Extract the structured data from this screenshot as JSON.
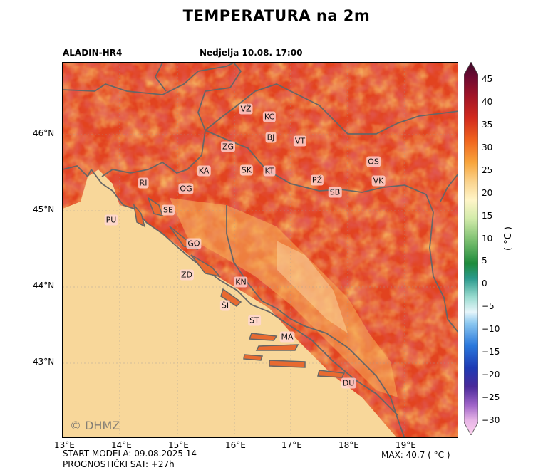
{
  "title": "TEMPERATURA na 2m",
  "model": "ALADIN-HR4",
  "valid_time": "Nedjelja 10.08. 17:00",
  "x_ticks": [
    "13°E",
    "14°E",
    "15°E",
    "16°E",
    "17°E",
    "18°E",
    "19°E"
  ],
  "y_ticks": [
    "46°N",
    "45°N",
    "44°N",
    "43°N"
  ],
  "colorbar": {
    "ticks": [
      "45",
      "40",
      "35",
      "30",
      "25",
      "20",
      "15",
      "10",
      "5",
      "0",
      "−5",
      "−10",
      "−15",
      "−20",
      "−25",
      "−30"
    ],
    "unit": "( °C )",
    "colors": [
      "#ffd2f0",
      "#c8a0dc",
      "#5a2a8c",
      "#2a2a9a",
      "#1e5ac8",
      "#5aaaf0",
      "#aadcf5",
      "#dcf0f5",
      "#8cdcc8",
      "#2a9a8c",
      "#1e8232",
      "#64b464",
      "#c8e6a0",
      "#f5f0c8",
      "#fadc96",
      "#faaa3c",
      "#f57823",
      "#e63c1e",
      "#c81e1e",
      "#8c0a1e",
      "#3c0a28"
    ]
  },
  "cities": [
    {
      "code": "VŽ"
    },
    {
      "code": "KC"
    },
    {
      "code": "BJ"
    },
    {
      "code": "VT"
    },
    {
      "code": "ZG"
    },
    {
      "code": "OS"
    },
    {
      "code": "KA"
    },
    {
      "code": "SK"
    },
    {
      "code": "KT"
    },
    {
      "code": "PŽ"
    },
    {
      "code": "VK"
    },
    {
      "code": "RI"
    },
    {
      "code": "OG"
    },
    {
      "code": "SB"
    },
    {
      "code": "SE"
    },
    {
      "code": "PU"
    },
    {
      "code": "GO"
    },
    {
      "code": "ZD"
    },
    {
      "code": "KN"
    },
    {
      "code": "ŠI"
    },
    {
      "code": "ST"
    },
    {
      "code": "MA"
    },
    {
      "code": "DU"
    }
  ],
  "watermark": "© DHMZ",
  "footer": {
    "start": "START MODELA: 09.08.2025 14",
    "forecast_hour": "PROGNOSTIČKI SAT: +27h",
    "max": "MAX: 40.7 ( °C )"
  }
}
